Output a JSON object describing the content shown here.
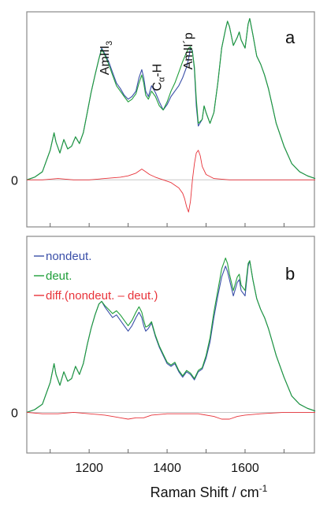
{
  "chart_data": {
    "type": "line",
    "xlabel_main": "Raman Shift / cm",
    "xlabel_sup": "-1",
    "x_ticks": [
      1200,
      1400,
      1600
    ],
    "xlim": [
      1040,
      1780
    ],
    "colors": {
      "nondeut": "#3a4fa8",
      "deut": "#1f9e3a",
      "diff": "#e8333a"
    },
    "panels": [
      {
        "letter": "a",
        "zero_label": "0",
        "ylim": [
          -0.35,
          1.25
        ],
        "annotations": [
          {
            "main": "AmIII",
            "sub": "3",
            "x": 1250,
            "y": 0.78
          },
          {
            "main": "C",
            "sub": "α",
            "tail": "-H",
            "x": 1385,
            "y": 0.66
          },
          {
            "main": "AmII´p",
            "x": 1465,
            "y": 0.82
          }
        ],
        "legend": [],
        "series": [
          {
            "name": "nondeut",
            "x": [
              1040,
              1060,
              1080,
              1090,
              1100,
              1110,
              1115,
              1125,
              1135,
              1145,
              1155,
              1165,
              1175,
              1185,
              1195,
              1205,
              1215,
              1225,
              1232,
              1240,
              1250,
              1260,
              1270,
              1280,
              1290,
              1300,
              1310,
              1320,
              1328,
              1335,
              1340,
              1345,
              1352,
              1360,
              1370,
              1380,
              1390,
              1400,
              1410,
              1420,
              1430,
              1440,
              1450,
              1455,
              1460,
              1465,
              1470,
              1475,
              1480,
              1490,
              1495,
              1500,
              1510,
              1520,
              1530,
              1540,
              1550,
              1555,
              1560,
              1570,
              1580,
              1585,
              1590,
              1600,
              1608,
              1612,
              1620,
              1630,
              1640,
              1650,
              1660,
              1670,
              1680,
              1700,
              1720,
              1740,
              1760,
              1780
            ],
            "y": [
              0.0,
              0.02,
              0.06,
              0.14,
              0.22,
              0.35,
              0.28,
              0.2,
              0.3,
              0.23,
              0.25,
              0.32,
              0.27,
              0.35,
              0.5,
              0.65,
              0.78,
              0.9,
              0.98,
              0.94,
              0.88,
              0.8,
              0.72,
              0.68,
              0.63,
              0.6,
              0.62,
              0.66,
              0.76,
              0.82,
              0.76,
              0.66,
              0.62,
              0.7,
              0.65,
              0.58,
              0.52,
              0.56,
              0.62,
              0.66,
              0.7,
              0.76,
              0.84,
              0.9,
              0.98,
              0.96,
              0.82,
              0.55,
              0.4,
              0.45,
              0.55,
              0.5,
              0.42,
              0.5,
              0.72,
              0.98,
              1.12,
              1.18,
              1.14,
              1.0,
              1.06,
              1.1,
              1.04,
              0.98,
              1.16,
              1.2,
              1.08,
              0.92,
              0.86,
              0.78,
              0.68,
              0.55,
              0.42,
              0.25,
              0.12,
              0.06,
              0.03,
              0.01
            ]
          },
          {
            "name": "deut",
            "x": [
              1040,
              1060,
              1080,
              1090,
              1100,
              1110,
              1115,
              1125,
              1135,
              1145,
              1155,
              1165,
              1175,
              1185,
              1195,
              1205,
              1215,
              1225,
              1232,
              1240,
              1250,
              1260,
              1270,
              1280,
              1290,
              1300,
              1310,
              1320,
              1328,
              1335,
              1340,
              1345,
              1352,
              1360,
              1370,
              1380,
              1390,
              1400,
              1410,
              1420,
              1430,
              1440,
              1450,
              1455,
              1460,
              1465,
              1470,
              1475,
              1480,
              1490,
              1495,
              1500,
              1510,
              1520,
              1530,
              1540,
              1550,
              1555,
              1560,
              1570,
              1580,
              1585,
              1590,
              1600,
              1608,
              1612,
              1620,
              1630,
              1640,
              1650,
              1660,
              1670,
              1680,
              1700,
              1720,
              1740,
              1760,
              1780
            ],
            "y": [
              0.0,
              0.02,
              0.06,
              0.14,
              0.22,
              0.35,
              0.28,
              0.2,
              0.3,
              0.23,
              0.25,
              0.32,
              0.27,
              0.35,
              0.5,
              0.65,
              0.78,
              0.9,
              0.97,
              0.93,
              0.86,
              0.78,
              0.7,
              0.66,
              0.62,
              0.58,
              0.6,
              0.64,
              0.72,
              0.78,
              0.72,
              0.63,
              0.6,
              0.66,
              0.62,
              0.55,
              0.52,
              0.58,
              0.66,
              0.72,
              0.8,
              0.88,
              0.95,
              0.98,
              0.99,
              0.95,
              0.84,
              0.6,
              0.42,
              0.45,
              0.55,
              0.5,
              0.42,
              0.5,
              0.72,
              0.98,
              1.12,
              1.18,
              1.14,
              1.0,
              1.06,
              1.1,
              1.04,
              0.98,
              1.16,
              1.2,
              1.08,
              0.92,
              0.86,
              0.78,
              0.68,
              0.55,
              0.42,
              0.25,
              0.12,
              0.06,
              0.03,
              0.01
            ]
          },
          {
            "name": "diff",
            "x": [
              1040,
              1080,
              1120,
              1160,
              1200,
              1240,
              1280,
              1300,
              1320,
              1335,
              1345,
              1355,
              1370,
              1390,
              1410,
              1420,
              1430,
              1440,
              1445,
              1450,
              1455,
              1460,
              1465,
              1470,
              1475,
              1480,
              1485,
              1490,
              1500,
              1520,
              1560,
              1600,
              1640,
              1700,
              1780
            ],
            "y": [
              0.0,
              0.0,
              0.01,
              0.0,
              0.0,
              0.01,
              0.02,
              0.03,
              0.05,
              0.08,
              0.06,
              0.04,
              0.02,
              0.0,
              -0.02,
              -0.04,
              -0.06,
              -0.1,
              -0.14,
              -0.2,
              -0.24,
              -0.16,
              0.0,
              0.12,
              0.2,
              0.22,
              0.18,
              0.1,
              0.04,
              0.01,
              0.0,
              0.0,
              0.0,
              0.0,
              0.0
            ]
          }
        ]
      },
      {
        "letter": "b",
        "zero_label": "0",
        "ylim": [
          -0.3,
          1.3
        ],
        "annotations": [],
        "legend": [
          {
            "label": "nondeut.",
            "color_key": "nondeut"
          },
          {
            "label": "deut.",
            "color_key": "deut"
          },
          {
            "label": "diff.(nondeut. – deut.)",
            "color_key": "diff"
          }
        ],
        "series": [
          {
            "name": "nondeut",
            "x": [
              1040,
              1060,
              1080,
              1090,
              1100,
              1110,
              1115,
              1125,
              1135,
              1145,
              1155,
              1165,
              1175,
              1185,
              1195,
              1205,
              1215,
              1225,
              1232,
              1240,
              1250,
              1260,
              1270,
              1280,
              1290,
              1300,
              1310,
              1320,
              1328,
              1335,
              1340,
              1345,
              1352,
              1360,
              1370,
              1380,
              1390,
              1400,
              1410,
              1420,
              1430,
              1440,
              1450,
              1460,
              1470,
              1480,
              1490,
              1500,
              1510,
              1520,
              1530,
              1540,
              1550,
              1555,
              1560,
              1570,
              1580,
              1585,
              1590,
              1600,
              1608,
              1612,
              1620,
              1630,
              1640,
              1650,
              1660,
              1670,
              1680,
              1700,
              1720,
              1740,
              1760,
              1780
            ],
            "y": [
              0.0,
              0.02,
              0.06,
              0.14,
              0.22,
              0.36,
              0.28,
              0.2,
              0.3,
              0.23,
              0.25,
              0.34,
              0.28,
              0.36,
              0.5,
              0.62,
              0.72,
              0.8,
              0.82,
              0.78,
              0.74,
              0.7,
              0.72,
              0.68,
              0.64,
              0.6,
              0.64,
              0.7,
              0.74,
              0.7,
              0.64,
              0.6,
              0.62,
              0.66,
              0.56,
              0.48,
              0.42,
              0.36,
              0.34,
              0.36,
              0.3,
              0.26,
              0.3,
              0.28,
              0.24,
              0.3,
              0.32,
              0.4,
              0.52,
              0.7,
              0.86,
              1.0,
              1.08,
              1.04,
              0.98,
              0.86,
              0.96,
              0.98,
              0.9,
              0.86,
              1.08,
              1.12,
              0.98,
              0.84,
              0.76,
              0.7,
              0.62,
              0.52,
              0.42,
              0.26,
              0.12,
              0.06,
              0.03,
              0.01
            ]
          },
          {
            "name": "deut",
            "x": [
              1040,
              1060,
              1080,
              1090,
              1100,
              1110,
              1115,
              1125,
              1135,
              1145,
              1155,
              1165,
              1175,
              1185,
              1195,
              1205,
              1215,
              1225,
              1232,
              1240,
              1250,
              1260,
              1270,
              1280,
              1290,
              1300,
              1310,
              1320,
              1328,
              1335,
              1340,
              1345,
              1352,
              1360,
              1370,
              1380,
              1390,
              1400,
              1410,
              1420,
              1430,
              1440,
              1450,
              1460,
              1470,
              1480,
              1490,
              1500,
              1510,
              1520,
              1530,
              1540,
              1550,
              1555,
              1560,
              1570,
              1580,
              1585,
              1590,
              1600,
              1608,
              1612,
              1620,
              1630,
              1640,
              1650,
              1660,
              1670,
              1680,
              1700,
              1720,
              1740,
              1760,
              1780
            ],
            "y": [
              0.0,
              0.02,
              0.06,
              0.14,
              0.22,
              0.36,
              0.28,
              0.2,
              0.3,
              0.23,
              0.25,
              0.34,
              0.28,
              0.36,
              0.5,
              0.62,
              0.72,
              0.8,
              0.82,
              0.79,
              0.76,
              0.73,
              0.75,
              0.72,
              0.68,
              0.64,
              0.68,
              0.74,
              0.78,
              0.74,
              0.68,
              0.63,
              0.64,
              0.67,
              0.57,
              0.49,
              0.43,
              0.37,
              0.35,
              0.37,
              0.31,
              0.27,
              0.31,
              0.29,
              0.25,
              0.31,
              0.33,
              0.42,
              0.55,
              0.74,
              0.9,
              1.06,
              1.14,
              1.1,
              1.02,
              0.9,
              1.0,
              1.02,
              0.94,
              0.9,
              1.1,
              1.12,
              0.98,
              0.84,
              0.76,
              0.7,
              0.62,
              0.52,
              0.42,
              0.26,
              0.12,
              0.06,
              0.03,
              0.01
            ]
          },
          {
            "name": "diff",
            "x": [
              1040,
              1080,
              1120,
              1160,
              1200,
              1240,
              1260,
              1280,
              1300,
              1320,
              1340,
              1360,
              1400,
              1440,
              1480,
              1520,
              1540,
              1560,
              1580,
              1600,
              1640,
              1700,
              1780
            ],
            "y": [
              0.0,
              -0.01,
              -0.01,
              0.0,
              -0.01,
              -0.02,
              -0.03,
              -0.04,
              -0.05,
              -0.04,
              -0.04,
              -0.02,
              -0.01,
              -0.01,
              -0.01,
              -0.03,
              -0.05,
              -0.05,
              -0.03,
              -0.02,
              -0.01,
              0.0,
              0.0
            ]
          }
        ]
      }
    ]
  }
}
